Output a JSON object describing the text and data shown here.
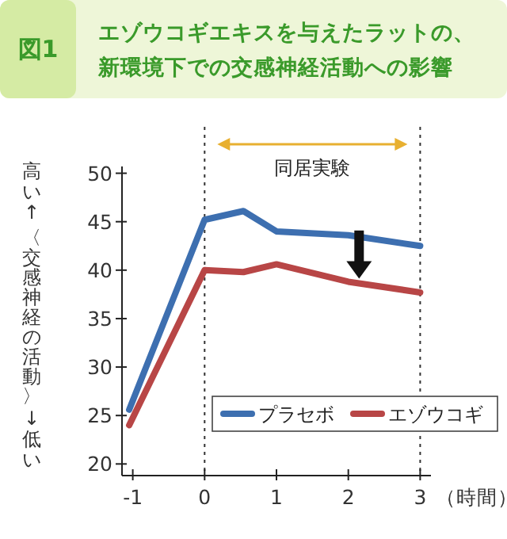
{
  "chart_data": {
    "type": "line",
    "title": "エゾウコギエキスを与えたラットの、新環境下での交感神経活動への影響",
    "ylabel": "〈交感神経の活動〉",
    "xlabel": "（時間）",
    "annotations": [
      "図1",
      "高い↑",
      "↓低い",
      "同居実験"
    ],
    "x": [
      -1.05,
      0,
      0.54,
      1,
      2,
      3
    ],
    "series": [
      {
        "name": "プラセボ",
        "color": "#3d6fb0",
        "values": [
          25.6,
          45.2,
          46.1,
          44,
          43.6,
          42.5
        ]
      },
      {
        "name": "エゾウコギ",
        "color": "#b84646",
        "values": [
          24,
          40,
          39.8,
          40.6,
          38.8,
          37.7
        ]
      }
    ],
    "xlim": [
      -1.15,
      3.15
    ],
    "xticks": [
      -1,
      0,
      1,
      2,
      3
    ],
    "ylim": [
      18.8,
      50.7
    ],
    "yticks": [
      20,
      25,
      30,
      35,
      40,
      45,
      50
    ],
    "ref_lines": [
      {
        "axis": "x",
        "value": 0,
        "line_style": "dotted",
        "color": "#333333"
      },
      {
        "axis": "x",
        "value": 3,
        "line_style": "dotted",
        "color": "#333333"
      }
    ],
    "legend": "bottom right",
    "grid": false,
    "marker": "none",
    "line_style": "solid"
  }
}
